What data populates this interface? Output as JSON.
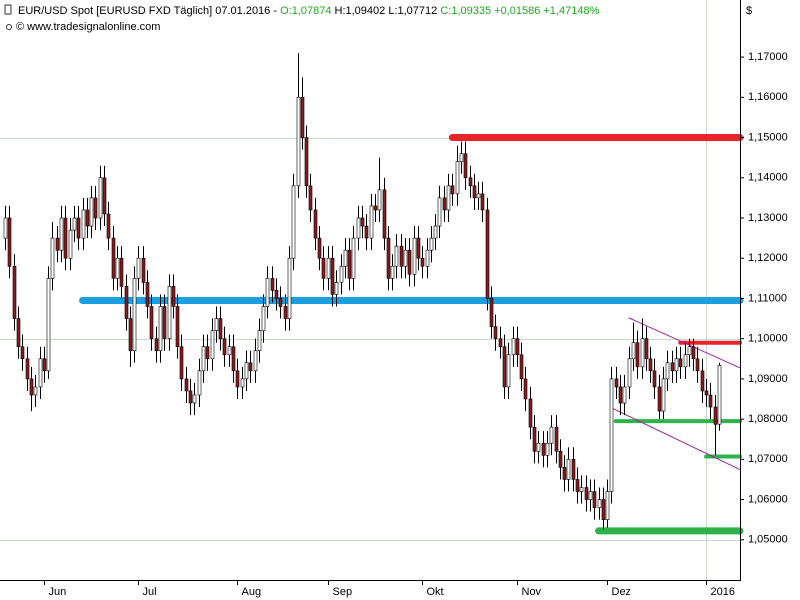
{
  "chart_data": {
    "type": "candlestick",
    "header": {
      "title": "EUR/USD Spot [EURUSD FXD  Täglich] 07.01.2016 - ",
      "open": "O:1,07874",
      "high_low": " H:1,09402 L:1,07712",
      "close_change": " C:1,09335 +0,01586 +1,47148%",
      "source": "© www.tradesignalonline.com"
    },
    "currency": "$",
    "up_color": "#ffffff",
    "down_color": "#8b1a1a",
    "xlim": [
      -1.2,
      170.9
    ],
    "ylim": [
      1.04,
      1.1842
    ],
    "xticks": [
      {
        "value": 9,
        "label": "Jun"
      },
      {
        "value": 31,
        "label": "Jul"
      },
      {
        "value": 54,
        "label": "Aug"
      },
      {
        "value": 75,
        "label": "Sep"
      },
      {
        "value": 97,
        "label": "Okt"
      },
      {
        "value": 119,
        "label": "Nov"
      },
      {
        "value": 140,
        "label": "Dez"
      },
      {
        "value": 163,
        "label": "2016"
      }
    ],
    "yticks": [
      {
        "value": 1.05,
        "label": "1,05000"
      },
      {
        "value": 1.06,
        "label": "1,06000"
      },
      {
        "value": 1.07,
        "label": "1,07000"
      },
      {
        "value": 1.08,
        "label": "1,08000"
      },
      {
        "value": 1.09,
        "label": "1,09000"
      },
      {
        "value": 1.1,
        "label": "1,10000"
      },
      {
        "value": 1.11,
        "label": "1,11000"
      },
      {
        "value": 1.12,
        "label": "1,12000"
      },
      {
        "value": 1.13,
        "label": "1,13000"
      },
      {
        "value": 1.14,
        "label": "1,14000"
      },
      {
        "value": 1.15,
        "label": "1,15000"
      },
      {
        "value": 1.16,
        "label": "1,16000"
      },
      {
        "value": 1.17,
        "label": "1,17000"
      }
    ],
    "y_gridlines": [
      1.05,
      1.1,
      1.15
    ],
    "x_gridlines": [
      163
    ],
    "levels": [
      {
        "value": 1.15,
        "start": 104,
        "color": "#e8232b",
        "style": "thick"
      },
      {
        "value": 1.1095,
        "start": 18,
        "color": "#1a9fe0",
        "style": "thick"
      },
      {
        "value": 1.099,
        "start": 157,
        "color": "#e8232b",
        "style": "medium"
      },
      {
        "value": 1.0795,
        "start": 142,
        "color": "#2db34a",
        "style": "medium"
      },
      {
        "value": 1.0707,
        "start": 163,
        "color": "#2db34a",
        "style": "medium"
      },
      {
        "value": 1.0522,
        "start": 138,
        "color": "#2db34a",
        "style": "thick"
      }
    ],
    "trendlines": [
      {
        "points": [
          [
            145,
            1.1052
          ],
          [
            171,
            1.0927
          ]
        ],
        "color": "#a020a0"
      },
      {
        "points": [
          [
            141,
            1.0828
          ],
          [
            171,
            1.0674
          ]
        ],
        "color": "#a020a0"
      }
    ],
    "ohlc": [
      [
        1.125,
        1.133,
        1.122,
        1.13
      ],
      [
        1.13,
        1.133,
        1.115,
        1.118
      ],
      [
        1.118,
        1.121,
        1.102,
        1.105
      ],
      [
        1.105,
        1.108,
        1.095,
        1.098
      ],
      [
        1.098,
        1.101,
        1.092,
        1.095
      ],
      [
        1.095,
        1.098,
        1.087,
        1.09
      ],
      [
        1.09,
        1.093,
        1.082,
        1.086
      ],
      [
        1.086,
        1.091,
        1.083,
        1.088
      ],
      [
        1.088,
        1.098,
        1.085,
        1.095
      ],
      [
        1.095,
        1.098,
        1.089,
        1.092
      ],
      [
        1.092,
        1.118,
        1.09,
        1.115
      ],
      [
        1.115,
        1.129,
        1.112,
        1.125
      ],
      [
        1.125,
        1.128,
        1.119,
        1.122
      ],
      [
        1.122,
        1.133,
        1.119,
        1.13
      ],
      [
        1.13,
        1.133,
        1.117,
        1.12
      ],
      [
        1.12,
        1.13,
        1.117,
        1.127
      ],
      [
        1.127,
        1.133,
        1.124,
        1.13
      ],
      [
        1.13,
        1.133,
        1.122,
        1.125
      ],
      [
        1.125,
        1.135,
        1.122,
        1.132
      ],
      [
        1.132,
        1.135,
        1.125,
        1.128
      ],
      [
        1.128,
        1.138,
        1.125,
        1.135
      ],
      [
        1.135,
        1.138,
        1.127,
        1.13
      ],
      [
        1.13,
        1.143,
        1.127,
        1.14
      ],
      [
        1.14,
        1.143,
        1.128,
        1.131
      ],
      [
        1.131,
        1.134,
        1.122,
        1.125
      ],
      [
        1.125,
        1.128,
        1.112,
        1.115
      ],
      [
        1.115,
        1.123,
        1.112,
        1.12
      ],
      [
        1.12,
        1.123,
        1.11,
        1.113
      ],
      [
        1.113,
        1.116,
        1.102,
        1.105
      ],
      [
        1.105,
        1.108,
        1.093,
        1.097
      ],
      [
        1.097,
        1.118,
        1.094,
        1.115
      ],
      [
        1.115,
        1.123,
        1.112,
        1.12
      ],
      [
        1.12,
        1.123,
        1.111,
        1.114
      ],
      [
        1.114,
        1.117,
        1.105,
        1.108
      ],
      [
        1.108,
        1.111,
        1.097,
        1.1
      ],
      [
        1.1,
        1.103,
        1.094,
        1.097
      ],
      [
        1.097,
        1.111,
        1.094,
        1.108
      ],
      [
        1.108,
        1.111,
        1.097,
        1.1
      ],
      [
        1.1,
        1.116,
        1.097,
        1.113
      ],
      [
        1.113,
        1.116,
        1.105,
        1.108
      ],
      [
        1.108,
        1.111,
        1.095,
        1.098
      ],
      [
        1.098,
        1.101,
        1.087,
        1.09
      ],
      [
        1.09,
        1.093,
        1.084,
        1.087
      ],
      [
        1.087,
        1.09,
        1.081,
        1.084
      ],
      [
        1.084,
        1.089,
        1.081,
        1.086
      ],
      [
        1.086,
        1.095,
        1.083,
        1.092
      ],
      [
        1.092,
        1.101,
        1.089,
        1.098
      ],
      [
        1.098,
        1.101,
        1.092,
        1.095
      ],
      [
        1.095,
        1.105,
        1.092,
        1.102
      ],
      [
        1.102,
        1.108,
        1.099,
        1.105
      ],
      [
        1.105,
        1.108,
        1.097,
        1.1
      ],
      [
        1.1,
        1.103,
        1.093,
        1.096
      ],
      [
        1.096,
        1.101,
        1.093,
        1.098
      ],
      [
        1.098,
        1.101,
        1.089,
        1.092
      ],
      [
        1.092,
        1.095,
        1.085,
        1.088
      ],
      [
        1.088,
        1.093,
        1.085,
        1.09
      ],
      [
        1.09,
        1.097,
        1.087,
        1.094
      ],
      [
        1.094,
        1.097,
        1.089,
        1.092
      ],
      [
        1.092,
        1.1,
        1.089,
        1.097
      ],
      [
        1.097,
        1.105,
        1.094,
        1.102
      ],
      [
        1.102,
        1.111,
        1.099,
        1.108
      ],
      [
        1.108,
        1.118,
        1.105,
        1.115
      ],
      [
        1.115,
        1.118,
        1.109,
        1.112
      ],
      [
        1.112,
        1.115,
        1.107,
        1.11
      ],
      [
        1.11,
        1.113,
        1.105,
        1.108
      ],
      [
        1.108,
        1.111,
        1.102,
        1.105
      ],
      [
        1.105,
        1.123,
        1.102,
        1.12
      ],
      [
        1.12,
        1.141,
        1.117,
        1.138
      ],
      [
        1.138,
        1.171,
        1.135,
        1.16
      ],
      [
        1.16,
        1.165,
        1.147,
        1.15
      ],
      [
        1.15,
        1.153,
        1.135,
        1.138
      ],
      [
        1.138,
        1.141,
        1.129,
        1.132
      ],
      [
        1.132,
        1.135,
        1.122,
        1.125
      ],
      [
        1.125,
        1.128,
        1.117,
        1.12
      ],
      [
        1.12,
        1.123,
        1.112,
        1.115
      ],
      [
        1.115,
        1.123,
        1.112,
        1.12
      ],
      [
        1.12,
        1.123,
        1.108,
        1.111
      ],
      [
        1.111,
        1.117,
        1.108,
        1.114
      ],
      [
        1.114,
        1.121,
        1.111,
        1.118
      ],
      [
        1.118,
        1.125,
        1.115,
        1.122
      ],
      [
        1.122,
        1.125,
        1.112,
        1.115
      ],
      [
        1.115,
        1.128,
        1.112,
        1.125
      ],
      [
        1.125,
        1.133,
        1.122,
        1.13
      ],
      [
        1.13,
        1.133,
        1.125,
        1.128
      ],
      [
        1.128,
        1.131,
        1.122,
        1.125
      ],
      [
        1.125,
        1.136,
        1.122,
        1.133
      ],
      [
        1.133,
        1.136,
        1.129,
        1.132
      ],
      [
        1.132,
        1.145,
        1.129,
        1.137
      ],
      [
        1.137,
        1.14,
        1.122,
        1.125
      ],
      [
        1.125,
        1.128,
        1.112,
        1.115
      ],
      [
        1.115,
        1.121,
        1.112,
        1.118
      ],
      [
        1.118,
        1.126,
        1.115,
        1.123
      ],
      [
        1.123,
        1.126,
        1.115,
        1.118
      ],
      [
        1.118,
        1.125,
        1.115,
        1.122
      ],
      [
        1.122,
        1.125,
        1.113,
        1.116
      ],
      [
        1.116,
        1.128,
        1.113,
        1.125
      ],
      [
        1.125,
        1.128,
        1.117,
        1.12
      ],
      [
        1.12,
        1.123,
        1.115,
        1.118
      ],
      [
        1.118,
        1.125,
        1.115,
        1.122
      ],
      [
        1.122,
        1.128,
        1.119,
        1.125
      ],
      [
        1.125,
        1.131,
        1.122,
        1.128
      ],
      [
        1.128,
        1.138,
        1.125,
        1.135
      ],
      [
        1.135,
        1.138,
        1.129,
        1.132
      ],
      [
        1.132,
        1.141,
        1.129,
        1.138
      ],
      [
        1.138,
        1.141,
        1.133,
        1.136
      ],
      [
        1.136,
        1.148,
        1.133,
        1.144
      ],
      [
        1.144,
        1.149,
        1.141,
        1.146
      ],
      [
        1.146,
        1.149,
        1.137,
        1.14
      ],
      [
        1.14,
        1.143,
        1.135,
        1.138
      ],
      [
        1.138,
        1.141,
        1.132,
        1.135
      ],
      [
        1.135,
        1.139,
        1.132,
        1.136
      ],
      [
        1.136,
        1.139,
        1.129,
        1.132
      ],
      [
        1.132,
        1.135,
        1.107,
        1.11
      ],
      [
        1.11,
        1.113,
        1.1,
        1.103
      ],
      [
        1.103,
        1.106,
        1.097,
        1.1
      ],
      [
        1.1,
        1.103,
        1.095,
        1.098
      ],
      [
        1.098,
        1.101,
        1.085,
        1.088
      ],
      [
        1.088,
        1.099,
        1.085,
        1.096
      ],
      [
        1.096,
        1.103,
        1.093,
        1.1
      ],
      [
        1.1,
        1.103,
        1.093,
        1.096
      ],
      [
        1.096,
        1.099,
        1.087,
        1.09
      ],
      [
        1.09,
        1.093,
        1.082,
        1.085
      ],
      [
        1.085,
        1.088,
        1.075,
        1.078
      ],
      [
        1.078,
        1.081,
        1.069,
        1.072
      ],
      [
        1.072,
        1.077,
        1.069,
        1.074
      ],
      [
        1.074,
        1.077,
        1.068,
        1.071
      ],
      [
        1.071,
        1.077,
        1.068,
        1.074
      ],
      [
        1.074,
        1.081,
        1.071,
        1.078
      ],
      [
        1.078,
        1.081,
        1.069,
        1.072
      ],
      [
        1.072,
        1.075,
        1.065,
        1.068
      ],
      [
        1.068,
        1.071,
        1.062,
        1.065
      ],
      [
        1.065,
        1.073,
        1.062,
        1.07
      ],
      [
        1.07,
        1.073,
        1.062,
        1.065
      ],
      [
        1.065,
        1.068,
        1.059,
        1.062
      ],
      [
        1.062,
        1.066,
        1.059,
        1.063
      ],
      [
        1.063,
        1.066,
        1.057,
        1.06
      ],
      [
        1.06,
        1.065,
        1.057,
        1.062
      ],
      [
        1.062,
        1.065,
        1.055,
        1.058
      ],
      [
        1.058,
        1.063,
        1.055,
        1.06
      ],
      [
        1.06,
        1.063,
        1.0525,
        1.055
      ],
      [
        1.055,
        1.065,
        1.053,
        1.062
      ],
      [
        1.062,
        1.093,
        1.059,
        1.09
      ],
      [
        1.09,
        1.093,
        1.085,
        1.088
      ],
      [
        1.088,
        1.091,
        1.081,
        1.084
      ],
      [
        1.084,
        1.091,
        1.081,
        1.088
      ],
      [
        1.088,
        1.098,
        1.085,
        1.095
      ],
      [
        1.095,
        1.104,
        1.092,
        1.099
      ],
      [
        1.099,
        1.102,
        1.09,
        1.093
      ],
      [
        1.093,
        1.105,
        1.09,
        1.1
      ],
      [
        1.1,
        1.103,
        1.092,
        1.095
      ],
      [
        1.095,
        1.098,
        1.089,
        1.092
      ],
      [
        1.092,
        1.095,
        1.085,
        1.088
      ],
      [
        1.088,
        1.091,
        1.08,
        1.082
      ],
      [
        1.082,
        1.093,
        1.08,
        1.09
      ],
      [
        1.09,
        1.097,
        1.087,
        1.094
      ],
      [
        1.094,
        1.097,
        1.089,
        1.092
      ],
      [
        1.092,
        1.098,
        1.089,
        1.095
      ],
      [
        1.095,
        1.098,
        1.09,
        1.093
      ],
      [
        1.093,
        1.099,
        1.09,
        1.096
      ],
      [
        1.096,
        1.1,
        1.093,
        1.098
      ],
      [
        1.098,
        1.1,
        1.092,
        1.095
      ],
      [
        1.095,
        1.098,
        1.089,
        1.092
      ],
      [
        1.092,
        1.095,
        1.084,
        1.087
      ],
      [
        1.087,
        1.09,
        1.083,
        1.086
      ],
      [
        1.086,
        1.089,
        1.08,
        1.083
      ],
      [
        1.083,
        1.086,
        1.071,
        1.0787
      ],
      [
        1.07874,
        1.09402,
        1.07712,
        1.09335
      ]
    ]
  }
}
